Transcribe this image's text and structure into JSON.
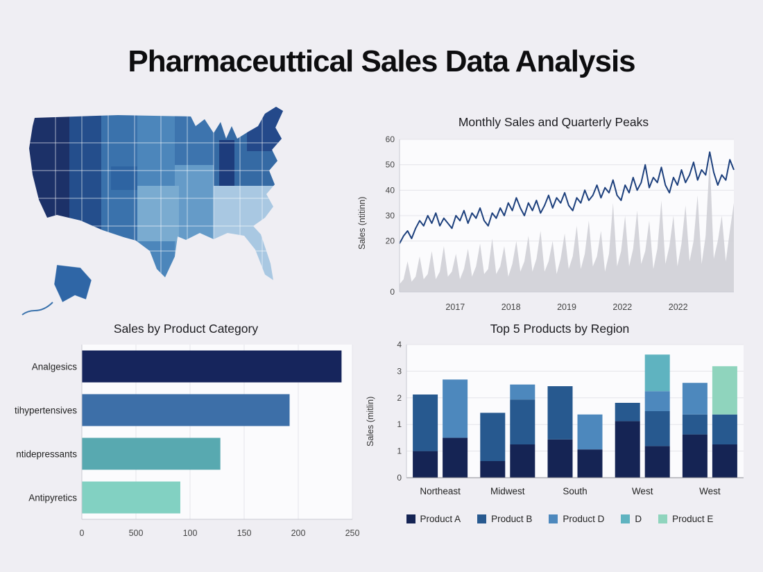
{
  "page": {
    "title": "Pharmaceuttical Sales Data Analysis"
  },
  "theme": {
    "background": "#efeef3",
    "panel": "#fbfbfd",
    "grid": "#e4e4ea",
    "axis_text": "#444444",
    "spine": "#c9c9d2",
    "label_text": "#222222"
  },
  "chart_data": [
    {
      "id": "us_map",
      "type": "choropleth",
      "title": "",
      "description": "United States map shaded by sales intensity, darker blue = higher sales",
      "palette": [
        "#1c3168",
        "#244e8c",
        "#3a72ac",
        "#4c86bb",
        "#659bc8",
        "#a9c8e2",
        "#356aa4",
        "#1d3c7c",
        "#24498a",
        "#2e64a2",
        "#7aabd0",
        "#3d74ae",
        "#2f66a6"
      ]
    },
    {
      "id": "monthly_sales",
      "type": "line",
      "title": "Monthly Sales and Quarterly Peaks",
      "ylabel": "Sales (ntitinn)",
      "ylim": [
        0,
        60
      ],
      "yticks": [
        0,
        20,
        30,
        40,
        50,
        60
      ],
      "xtick_labels": [
        "2017",
        "2018",
        "2019",
        "2022",
        "2022"
      ],
      "series": [
        {
          "name": "Monthly Sales",
          "color": "#1c3f7c",
          "values": [
            19,
            22,
            24,
            21,
            25,
            28,
            26,
            30,
            27,
            31,
            26,
            29,
            27,
            25,
            30,
            28,
            32,
            27,
            31,
            29,
            33,
            28,
            26,
            31,
            29,
            33,
            30,
            35,
            32,
            37,
            33,
            30,
            35,
            32,
            36,
            31,
            34,
            38,
            33,
            37,
            35,
            39,
            34,
            32,
            37,
            35,
            40,
            36,
            38,
            42,
            37,
            41,
            39,
            44,
            38,
            36,
            42,
            39,
            45,
            40,
            43,
            50,
            41,
            45,
            43,
            49,
            42,
            39,
            45,
            42,
            48,
            43,
            46,
            51,
            44,
            48,
            46,
            55,
            47,
            42,
            46,
            44,
            52,
            48
          ]
        },
        {
          "name": "Quarterly Peaks",
          "type": "area",
          "color": "#cfcfd6",
          "values": [
            3,
            5,
            12,
            4,
            6,
            14,
            5,
            7,
            16,
            5,
            8,
            18,
            6,
            8,
            15,
            5,
            9,
            17,
            6,
            10,
            19,
            7,
            9,
            21,
            7,
            10,
            18,
            6,
            11,
            20,
            8,
            12,
            22,
            8,
            13,
            24,
            8,
            12,
            20,
            7,
            13,
            23,
            9,
            14,
            26,
            9,
            15,
            28,
            10,
            14,
            24,
            8,
            15,
            35,
            10,
            16,
            30,
            10,
            17,
            32,
            11,
            16,
            28,
            9,
            17,
            36,
            11,
            18,
            30,
            10,
            19,
            34,
            12,
            20,
            38,
            11,
            22,
            53,
            13,
            20,
            30,
            12,
            24,
            35
          ]
        }
      ]
    },
    {
      "id": "category_sales",
      "type": "bar",
      "orientation": "horizontal",
      "title": "Sales by Product Category",
      "categories": [
        "Analgesics",
        "tihypertensives",
        "ntidepressants",
        "Antipyretics"
      ],
      "values": [
        240,
        192,
        128,
        91
      ],
      "colors": [
        "#16255c",
        "#3d6fa8",
        "#58a9b0",
        "#82d1c2"
      ],
      "xlim": [
        0,
        250
      ],
      "xticks": [
        "0",
        "500",
        "100",
        "150",
        "200",
        "250"
      ]
    },
    {
      "id": "top5_region",
      "type": "stacked_bar",
      "title": "Top 5 Products by Region",
      "ylabel": "Sales (mitlin)",
      "ylim": [
        0,
        4
      ],
      "ytick_labels": [
        "0",
        "1",
        "1",
        "2",
        "3",
        "4"
      ],
      "categories": [
        "Northeast",
        "Midwest",
        "South",
        "West",
        "West"
      ],
      "legend": [
        "Product A",
        "Product B",
        "Product D",
        "D",
        "Product E"
      ],
      "colors": [
        "#152454",
        "#27598f",
        "#4d88bd",
        "#5fb3c0",
        "#8fd4bd"
      ],
      "bars": [
        [
          [
            0.8,
            1.7,
            0,
            0,
            0
          ],
          [
            1.2,
            0,
            1.75,
            0,
            0
          ]
        ],
        [
          [
            0.5,
            1.45,
            0,
            0,
            0
          ],
          [
            1.0,
            1.35,
            0.45,
            0,
            0
          ]
        ],
        [
          [
            1.15,
            1.6,
            0,
            0,
            0
          ],
          [
            0.85,
            0,
            1.05,
            0,
            0
          ]
        ],
        [
          [
            1.7,
            0.55,
            0,
            0,
            0
          ],
          [
            0.95,
            1.05,
            0.6,
            1.1,
            0
          ]
        ],
        [
          [
            1.3,
            0.6,
            0.95,
            0,
            0
          ],
          [
            1.0,
            0.9,
            0,
            0,
            1.45
          ]
        ]
      ]
    }
  ]
}
